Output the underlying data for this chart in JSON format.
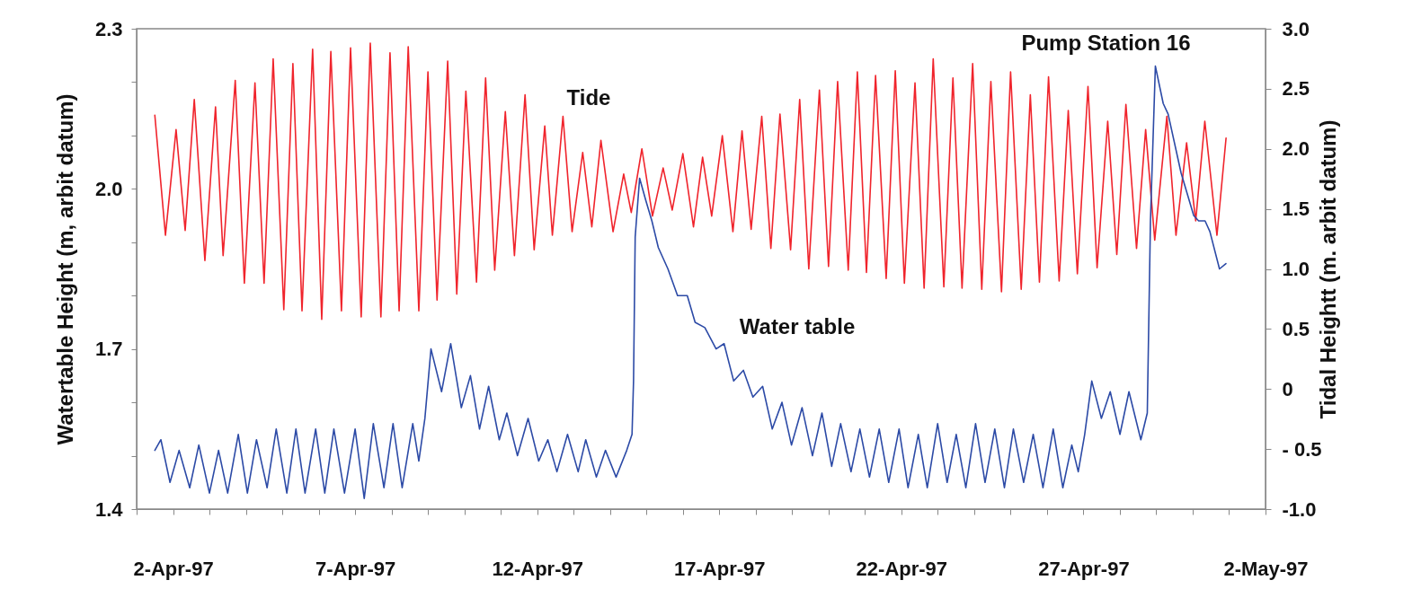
{
  "chart_data": {
    "type": "line",
    "ylabel": "Watertable Height (m, arbit datum)",
    "y2label": "Tidal Heightt (m. arbit datum)",
    "xlim": [
      "1997-04-01T00:00",
      "1997-05-02T00:00"
    ],
    "xticks": [
      {
        "value": "1997-04-01T00:00",
        "label": null
      },
      {
        "value": "1997-04-02T00:00",
        "label": "2-Apr-97"
      },
      {
        "value": "1997-04-03T00:00",
        "label": null
      },
      {
        "value": "1997-04-04T00:00",
        "label": null
      },
      {
        "value": "1997-04-05T00:00",
        "label": null
      },
      {
        "value": "1997-04-06T00:00",
        "label": null
      },
      {
        "value": "1997-04-07T00:00",
        "label": "7-Apr-97"
      },
      {
        "value": "1997-04-08T00:00",
        "label": null
      },
      {
        "value": "1997-04-09T00:00",
        "label": null
      },
      {
        "value": "1997-04-10T00:00",
        "label": null
      },
      {
        "value": "1997-04-11T00:00",
        "label": null
      },
      {
        "value": "1997-04-12T00:00",
        "label": "12-Apr-97"
      },
      {
        "value": "1997-04-13T00:00",
        "label": null
      },
      {
        "value": "1997-04-14T00:00",
        "label": null
      },
      {
        "value": "1997-04-15T00:00",
        "label": null
      },
      {
        "value": "1997-04-16T00:00",
        "label": null
      },
      {
        "value": "1997-04-17T00:00",
        "label": "17-Apr-97"
      },
      {
        "value": "1997-04-18T00:00",
        "label": null
      },
      {
        "value": "1997-04-19T00:00",
        "label": null
      },
      {
        "value": "1997-04-20T00:00",
        "label": null
      },
      {
        "value": "1997-04-21T00:00",
        "label": null
      },
      {
        "value": "1997-04-22T00:00",
        "label": "22-Apr-97"
      },
      {
        "value": "1997-04-23T00:00",
        "label": null
      },
      {
        "value": "1997-04-24T00:00",
        "label": null
      },
      {
        "value": "1997-04-25T00:00",
        "label": null
      },
      {
        "value": "1997-04-26T00:00",
        "label": null
      },
      {
        "value": "1997-04-27T00:00",
        "label": "27-Apr-97"
      },
      {
        "value": "1997-04-28T00:00",
        "label": null
      },
      {
        "value": "1997-04-29T00:00",
        "label": null
      },
      {
        "value": "1997-04-30T00:00",
        "label": null
      },
      {
        "value": "1997-05-01T00:00",
        "label": null
      },
      {
        "value": "1997-05-02T00:00",
        "label": "2-May-97"
      }
    ],
    "ylim": [
      1.4,
      2.3
    ],
    "yticks": [
      {
        "value": 1.4,
        "label": "1.4"
      },
      {
        "value": 1.5,
        "label": null
      },
      {
        "value": 1.6,
        "label": null
      },
      {
        "value": 1.7,
        "label": "1.7"
      },
      {
        "value": 1.8,
        "label": null
      },
      {
        "value": 1.9,
        "label": null
      },
      {
        "value": 2.0,
        "label": "2.0"
      },
      {
        "value": 2.1,
        "label": null
      },
      {
        "value": 2.2,
        "label": null
      },
      {
        "value": 2.3,
        "label": "2.3"
      }
    ],
    "y2lim": [
      -1.0,
      3.0
    ],
    "y2ticks": [
      {
        "value": -1.0,
        "label": "-1.0"
      },
      {
        "value": -0.5,
        "label": "- 0.5"
      },
      0,
      {
        "value": 0.5,
        "label": "0.5"
      },
      {
        "value": 1.0,
        "label": "1.0"
      },
      {
        "value": 1.5,
        "label": "1.5"
      },
      {
        "value": 2.0,
        "label": "2.0"
      },
      {
        "value": 2.5,
        "label": "2.5"
      },
      {
        "value": 3.0,
        "label": "3.0"
      }
    ],
    "grid": false,
    "annotations": [
      {
        "text": "Pump Station 16",
        "x": "1997-04-28T23:25",
        "y": 2.23
      }
    ],
    "series": [
      {
        "name": "Tide",
        "color": "#f0242c",
        "axis": "y2",
        "x": [
          "1997-04-01T12:00",
          "1997-04-01T19:00",
          "1997-04-02T02:00",
          "1997-04-02T08:00",
          "1997-04-02T14:00",
          "1997-04-02T21:00",
          "1997-04-03T04:00",
          "1997-04-03T09:00",
          "1997-04-03T17:00",
          "1997-04-03T23:00",
          "1997-04-04T06:00",
          "1997-04-04T12:00",
          "1997-04-04T18:00",
          "1997-04-05T01:00",
          "1997-04-05T07:00",
          "1997-04-05T13:00",
          "1997-04-05T20:00",
          "1997-04-06T02:00",
          "1997-04-06T08:00",
          "1997-04-06T15:00",
          "1997-04-06T21:00",
          "1997-04-07T04:00",
          "1997-04-07T10:00",
          "1997-04-07T17:00",
          "1997-04-07T23:00",
          "1997-04-08T05:00",
          "1997-04-08T11:00",
          "1997-04-08T18:00",
          "1997-04-09T00:00",
          "1997-04-09T06:00",
          "1997-04-09T13:00",
          "1997-04-09T19:00",
          "1997-04-10T01:00",
          "1997-04-10T08:00",
          "1997-04-10T14:00",
          "1997-04-10T20:00",
          "1997-04-11T03:00",
          "1997-04-11T09:00",
          "1997-04-11T16:00",
          "1997-04-11T22:00",
          "1997-04-12T05:00",
          "1997-04-12T10:00",
          "1997-04-12T17:00",
          "1997-04-12T23:00",
          "1997-04-13T06:00",
          "1997-04-13T12:00",
          "1997-04-13T18:00",
          "1997-04-14T02:00",
          "1997-04-14T09:00",
          "1997-04-14T14:00",
          "1997-04-14T21:00",
          "1997-04-15T04:00",
          "1997-04-15T11:00",
          "1997-04-15T17:00",
          "1997-04-16T00:00",
          "1997-04-16T07:00",
          "1997-04-16T13:00",
          "1997-04-16T19:00",
          "1997-04-17T02:00",
          "1997-04-17T09:00",
          "1997-04-17T15:00",
          "1997-04-17T21:00",
          "1997-04-18T04:00",
          "1997-04-18T10:00",
          "1997-04-18T16:00",
          "1997-04-18T23:00",
          "1997-04-19T05:00",
          "1997-04-19T11:00",
          "1997-04-19T18:00",
          "1997-04-20T00:00",
          "1997-04-20T06:00",
          "1997-04-20T13:00",
          "1997-04-20T19:00",
          "1997-04-21T01:00",
          "1997-04-21T07:00",
          "1997-04-21T14:00",
          "1997-04-21T20:00",
          "1997-04-22T02:00",
          "1997-04-22T09:00",
          "1997-04-22T15:00",
          "1997-04-22T21:00",
          "1997-04-23T04:00",
          "1997-04-23T10:00",
          "1997-04-23T16:00",
          "1997-04-23T23:00",
          "1997-04-24T05:00",
          "1997-04-24T11:00",
          "1997-04-24T18:00",
          "1997-04-25T00:00",
          "1997-04-25T07:00",
          "1997-04-25T13:00",
          "1997-04-25T19:00",
          "1997-04-26T01:00",
          "1997-04-26T08:00",
          "1997-04-26T14:00",
          "1997-04-26T20:00",
          "1997-04-27T03:00",
          "1997-04-27T09:00",
          "1997-04-27T16:00",
          "1997-04-27T22:00",
          "1997-04-28T04:00",
          "1997-04-28T11:00",
          "1997-04-28T17:00",
          "1997-04-28T23:00",
          "1997-04-29T07:00",
          "1997-04-29T13:00",
          "1997-04-29T20:00",
          "1997-04-30T02:00",
          "1997-04-30T08:00",
          "1997-04-30T16:00",
          "1997-04-30T22:00"
        ],
        "values": [
          2.28,
          1.28,
          2.16,
          1.32,
          2.41,
          1.07,
          2.35,
          1.11,
          2.57,
          0.88,
          2.55,
          0.88,
          2.75,
          0.66,
          2.71,
          0.65,
          2.83,
          0.58,
          2.81,
          0.65,
          2.84,
          0.6,
          2.88,
          0.6,
          2.8,
          0.65,
          2.85,
          0.65,
          2.64,
          0.74,
          2.73,
          0.79,
          2.48,
          0.89,
          2.59,
          0.99,
          2.31,
          1.11,
          2.45,
          1.16,
          2.19,
          1.28,
          2.27,
          1.31,
          1.97,
          1.35,
          2.07,
          1.31,
          1.79,
          1.47,
          2.0,
          1.44,
          1.84,
          1.49,
          1.96,
          1.35,
          1.93,
          1.44,
          2.11,
          1.31,
          2.15,
          1.33,
          2.27,
          1.17,
          2.29,
          1.16,
          2.41,
          1.0,
          2.49,
          1.02,
          2.56,
          0.99,
          2.64,
          0.97,
          2.61,
          0.92,
          2.65,
          0.88,
          2.55,
          0.84,
          2.75,
          0.85,
          2.59,
          0.84,
          2.71,
          0.83,
          2.56,
          0.81,
          2.64,
          0.83,
          2.45,
          0.89,
          2.6,
          0.9,
          2.32,
          0.96,
          2.52,
          1.01,
          2.23,
          1.12,
          2.37,
          1.17,
          2.16,
          1.24,
          2.27,
          1.28,
          2.05,
          1.4,
          2.23,
          1.28,
          2.09
        ]
      },
      {
        "name": "Water table",
        "color": "#2c4aa6",
        "x": [
          "1997-04-01T12:00",
          "1997-04-01T16:00",
          "1997-04-01T22:00",
          "1997-04-02T04:00",
          "1997-04-02T11:00",
          "1997-04-02T17:00",
          "1997-04-03T00:00",
          "1997-04-03T06:00",
          "1997-04-03T12:00",
          "1997-04-03T19:00",
          "1997-04-04T01:00",
          "1997-04-04T07:00",
          "1997-04-04T14:00",
          "1997-04-04T20:00",
          "1997-04-05T03:00",
          "1997-04-05T09:00",
          "1997-04-05T15:00",
          "1997-04-05T22:00",
          "1997-04-06T04:00",
          "1997-04-06T10:00",
          "1997-04-06T17:00",
          "1997-04-07T00:00",
          "1997-04-07T06:00",
          "1997-04-07T12:00",
          "1997-04-07T19:00",
          "1997-04-08T01:00",
          "1997-04-08T07:00",
          "1997-04-08T14:00",
          "1997-04-08T18:00",
          "1997-04-08T22:00",
          "1997-04-09T02:00",
          "1997-04-09T09:00",
          "1997-04-09T15:00",
          "1997-04-09T22:00",
          "1997-04-10T04:00",
          "1997-04-10T10:00",
          "1997-04-10T16:00",
          "1997-04-10T23:00",
          "1997-04-11T04:00",
          "1997-04-11T11:00",
          "1997-04-11T18:00",
          "1997-04-12T01:00",
          "1997-04-12T07:00",
          "1997-04-12T13:00",
          "1997-04-12T20:00",
          "1997-04-13T03:00",
          "1997-04-13T08:00",
          "1997-04-13T15:00",
          "1997-04-13T21:00",
          "1997-04-14T04:00",
          "1997-04-14T11:00",
          "1997-04-14T14:30",
          "1997-04-14T15:30",
          "1997-04-14T16:35",
          "1997-04-14T19:30",
          "1997-04-14T23:25",
          "1997-04-15T03:35",
          "1997-04-15T07:50",
          "1997-04-15T14:10",
          "1997-04-15T20:30",
          "1997-04-16T02:55",
          "1997-04-16T08:05",
          "1997-04-16T14:30",
          "1997-04-16T21:55",
          "1997-04-17T03:10",
          "1997-04-17T09:30",
          "1997-04-17T15:55",
          "1997-04-17T22:10",
          "1997-04-18T04:35",
          "1997-04-18T10:55",
          "1997-04-18T17:20",
          "1997-04-18T23:35",
          "1997-04-19T06:35",
          "1997-04-19T13:25",
          "1997-04-19T19:40",
          "1997-04-20T02:05",
          "1997-04-20T08:00",
          "1997-04-20T14:50",
          "1997-04-20T20:40",
          "1997-04-21T03:00",
          "1997-04-21T09:25",
          "1997-04-21T15:40",
          "1997-04-21T22:30",
          "1997-04-22T04:25",
          "1997-04-22T11:10",
          "1997-04-22T17:05",
          "1997-04-22T23:55",
          "1997-04-23T06:10",
          "1997-04-23T12:10",
          "1997-04-23T18:30",
          "1997-04-24T00:55",
          "1997-04-24T07:10",
          "1997-04-24T13:35",
          "1997-04-24T19:55",
          "1997-04-25T01:50",
          "1997-04-25T08:35",
          "1997-04-25T14:55",
          "1997-04-25T21:20",
          "1997-04-26T04:05",
          "1997-04-26T10:25",
          "1997-04-26T16:20",
          "1997-04-26T20:35",
          "1997-04-27T00:50",
          "1997-04-27T05:30",
          "1997-04-27T11:50",
          "1997-04-27T17:40",
          "1997-04-28T00:05",
          "1997-04-28T06:00",
          "1997-04-28T13:50",
          "1997-04-28T18:05",
          "1997-04-28T20:10",
          "1997-04-28T23:25",
          "1997-04-29T04:35",
          "1997-04-29T07:50",
          "1997-04-29T16:20",
          "1997-04-30T00:40",
          "1997-04-30T03:55",
          "1997-04-30T08:10",
          "1997-04-30T11:20",
          "1997-04-30T17:40",
          "1997-04-30T21:55"
        ],
        "values": [
          1.51,
          1.53,
          1.45,
          1.51,
          1.44,
          1.52,
          1.43,
          1.51,
          1.43,
          1.54,
          1.43,
          1.53,
          1.44,
          1.55,
          1.43,
          1.55,
          1.43,
          1.55,
          1.43,
          1.55,
          1.43,
          1.55,
          1.42,
          1.56,
          1.44,
          1.56,
          1.44,
          1.56,
          1.49,
          1.57,
          1.7,
          1.62,
          1.71,
          1.59,
          1.65,
          1.55,
          1.63,
          1.53,
          1.58,
          1.5,
          1.57,
          1.49,
          1.53,
          1.47,
          1.54,
          1.47,
          1.53,
          1.46,
          1.51,
          1.46,
          1.51,
          1.54,
          1.64,
          1.91,
          2.02,
          1.98,
          1.94,
          1.89,
          1.85,
          1.8,
          1.8,
          1.75,
          1.74,
          1.7,
          1.71,
          1.64,
          1.66,
          1.61,
          1.63,
          1.55,
          1.6,
          1.52,
          1.59,
          1.5,
          1.58,
          1.48,
          1.56,
          1.47,
          1.55,
          1.46,
          1.55,
          1.45,
          1.55,
          1.44,
          1.54,
          1.44,
          1.56,
          1.45,
          1.54,
          1.44,
          1.56,
          1.45,
          1.55,
          1.44,
          1.55,
          1.45,
          1.54,
          1.44,
          1.55,
          1.44,
          1.52,
          1.47,
          1.54,
          1.64,
          1.57,
          1.62,
          1.54,
          1.62,
          1.53,
          1.58,
          1.94,
          2.23,
          2.16,
          2.14,
          2.03,
          1.95,
          1.94,
          1.94,
          1.92,
          1.85,
          1.86
        ]
      }
    ]
  }
}
